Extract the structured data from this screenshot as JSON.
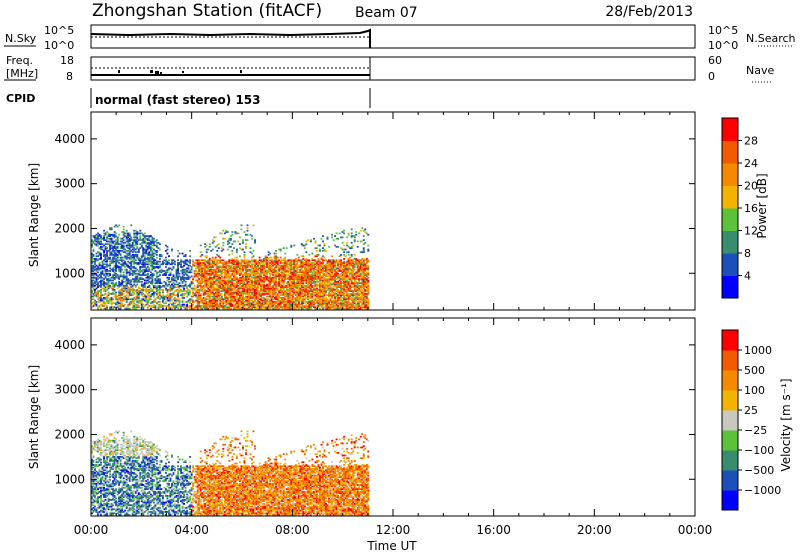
{
  "header": {
    "title": "Zhongshan Station (fitACF)",
    "beam": "Beam 07",
    "date": "28/Feb/2013"
  },
  "nsky_panel": {
    "left_label": "N.Sky",
    "right_label": "N.Search",
    "left_ticks": [
      "10^5",
      "10^0"
    ],
    "right_ticks": [
      "10^5",
      "10^0"
    ]
  },
  "freq_panel": {
    "left_label_line1": "Freq.",
    "left_label_line2": "[MHz]",
    "right_label": "Nave",
    "left_ticks": [
      "18",
      "8"
    ],
    "right_ticks": [
      "60",
      "0"
    ]
  },
  "cpid": {
    "label": "CPID",
    "text": "normal (fast stereo) 153"
  },
  "colors": {
    "power_scale": [
      "#0000ff",
      "#1d4fb8",
      "#3a8c6e",
      "#5bc23a",
      "#f2b400",
      "#f58a00",
      "#f05a00",
      "#ff0000"
    ],
    "velocity_scale": [
      "#ff0000",
      "#f05a00",
      "#f58a00",
      "#f2b400",
      "#c8c8c0",
      "#5bc23a",
      "#3a8c6e",
      "#1d4fb8",
      "#0000ff"
    ]
  },
  "chart_data": [
    {
      "type": "heatmap",
      "name": "power",
      "ylabel": "Slant Range [km]",
      "xlim_hours": [
        0,
        24
      ],
      "ylim": [
        180,
        4600
      ],
      "y_ticks": [
        "1000",
        "2000",
        "3000",
        "4000"
      ],
      "y_tick_values": [
        1000,
        2000,
        3000,
        4000
      ],
      "data_extent_hours": [
        0,
        11
      ],
      "colorbar": {
        "label": "Power [dB]",
        "tick_labels": [
          "4",
          "8",
          "12",
          "16",
          "20",
          "24",
          "28"
        ],
        "tick_values": [
          4,
          8,
          12,
          16,
          20,
          24,
          28
        ],
        "range": [
          0,
          32
        ]
      }
    },
    {
      "type": "heatmap",
      "name": "velocity",
      "ylabel": "Slant Range [km]",
      "xlabel": "Time UT",
      "xlim_hours": [
        0,
        24
      ],
      "ylim": [
        180,
        4600
      ],
      "y_ticks": [
        "1000",
        "2000",
        "3000",
        "4000"
      ],
      "y_tick_values": [
        1000,
        2000,
        3000,
        4000
      ],
      "x_ticks": [
        "00:00",
        "04:00",
        "08:00",
        "12:00",
        "16:00",
        "20:00",
        "00:00"
      ],
      "x_tick_values": [
        0,
        4,
        8,
        12,
        16,
        20,
        24
      ],
      "data_extent_hours": [
        0,
        11
      ],
      "colorbar": {
        "label": "Velocity [m s⁻¹]",
        "tick_labels": [
          "1000",
          "500",
          "100",
          "25",
          "−25",
          "−100",
          "−500",
          "−1000"
        ]
      }
    }
  ]
}
